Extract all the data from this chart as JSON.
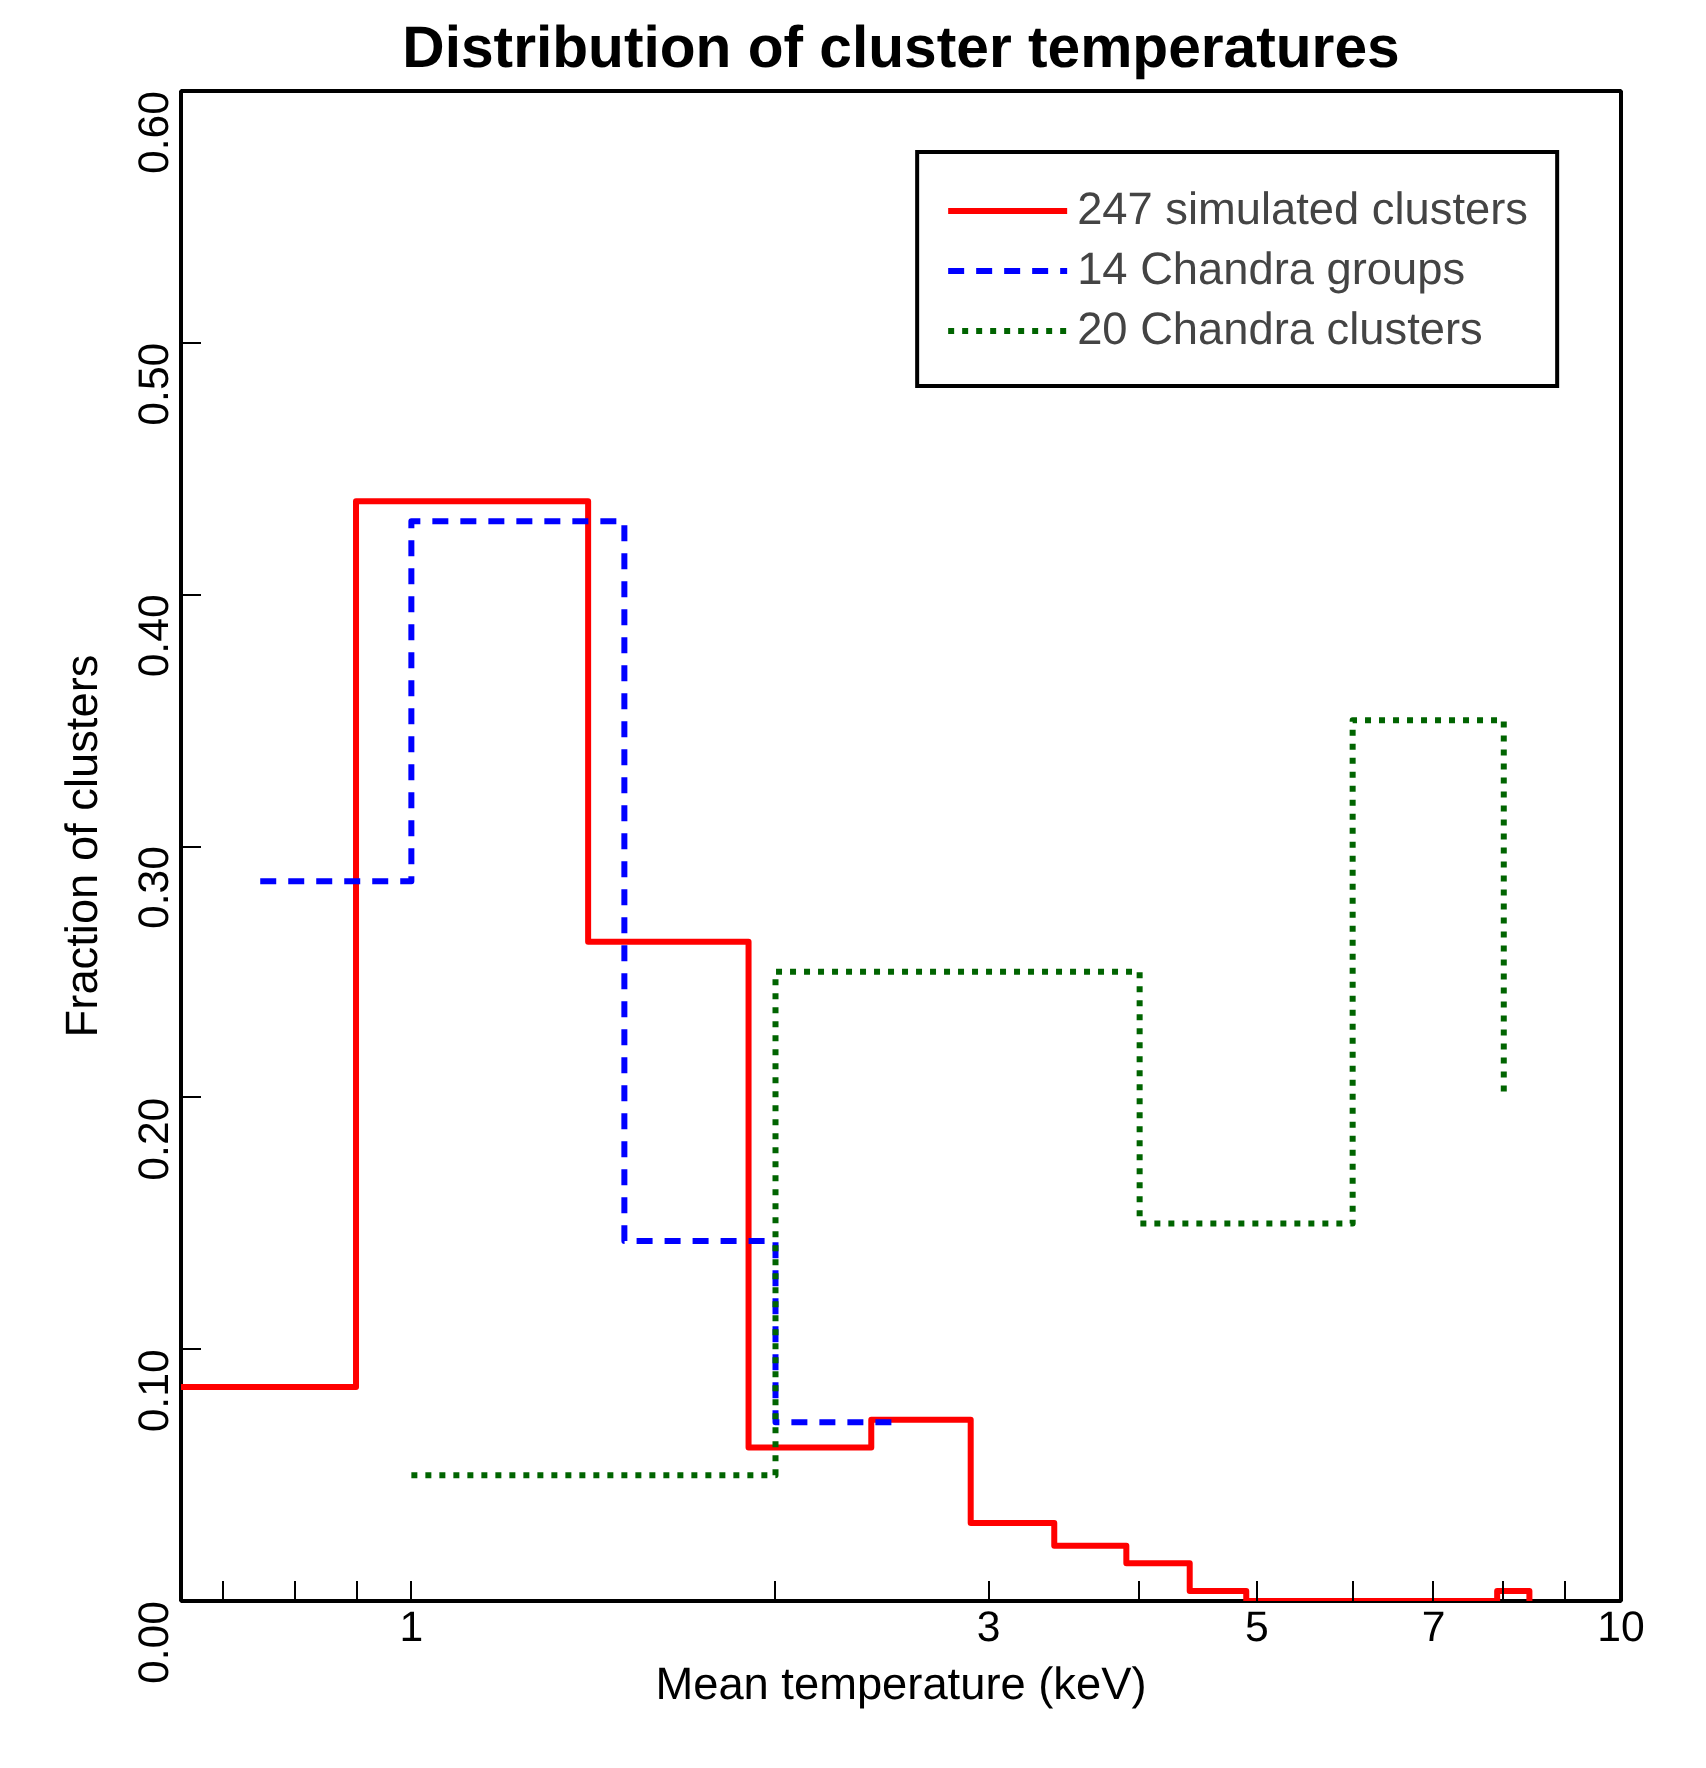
{
  "chart_data": {
    "type": "step",
    "title": "Distribution of cluster temperatures",
    "xlabel": "Mean temperature (keV)",
    "ylabel": "Fraction of clusters",
    "log": "x",
    "xlim": [
      0.645,
      10
    ],
    "ylim": [
      0,
      0.6
    ],
    "xticks": [
      {
        "value": 0.7,
        "label": null
      },
      {
        "value": 0.8,
        "label": null
      },
      {
        "value": 0.9,
        "label": null
      },
      1,
      {
        "value": 2,
        "label": null
      },
      3,
      {
        "value": 4,
        "label": null
      },
      5,
      {
        "value": 6,
        "label": null
      },
      7,
      {
        "value": 8,
        "label": null
      },
      {
        "value": 9,
        "label": null
      },
      10
    ],
    "yticks": [
      {
        "value": 0,
        "label": "0.00"
      },
      {
        "value": 0.1,
        "label": "0.10"
      },
      {
        "value": 0.2,
        "label": "0.20"
      },
      {
        "value": 0.3,
        "label": "0.30"
      },
      {
        "value": 0.4,
        "label": "0.40"
      },
      {
        "value": 0.5,
        "label": "0.50"
      },
      {
        "value": 0.6,
        "label": "0.60"
      }
    ],
    "grid": false,
    "legend": "top right",
    "series": [
      {
        "name": "247 simulated clusters",
        "color": "#ff0000",
        "line_style": "solid",
        "x": [
          0.645,
          0.9,
          1.4,
          1.9,
          2.4,
          2.9,
          3.4,
          3.9,
          4.4,
          4.9,
          7.9,
          8.4
        ],
        "values": [
          0.085,
          0.437,
          0.262,
          0.061,
          0.072,
          0.031,
          0.022,
          0.015,
          0.004,
          0,
          0.004,
          0
        ]
      },
      {
        "name": "14 Chandra groups",
        "color": "#0000ff",
        "line_style": "dashed",
        "x": [
          0.75,
          1,
          1.5,
          2,
          2.5
        ],
        "values": [
          0.286,
          0.429,
          0.143,
          0.071,
          0.071
        ]
      },
      {
        "name": "20 Chandra clusters",
        "color": "#006400",
        "line_style": "dotted",
        "x": [
          1,
          2,
          4,
          6,
          8
        ],
        "values": [
          0.05,
          0.25,
          0.15,
          0.35,
          0.2
        ]
      }
    ]
  }
}
